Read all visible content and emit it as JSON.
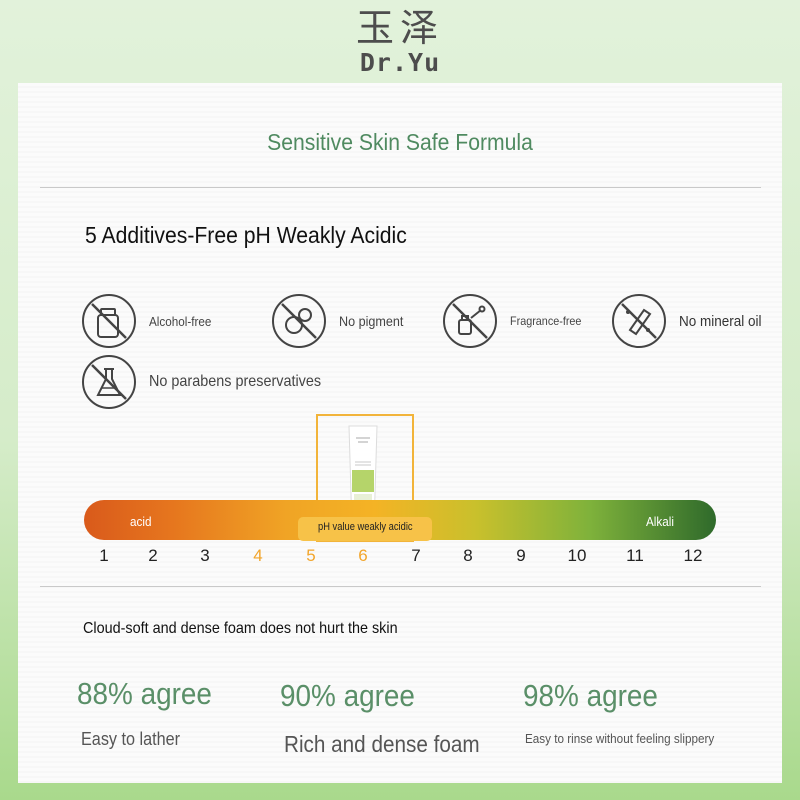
{
  "brand": {
    "chinese": "玉泽",
    "english": "Dr.Yu"
  },
  "section_title": "Sensitive Skin Safe Formula",
  "subheading": "5 Additives-Free pH Weakly Acidic",
  "features": [
    {
      "label": "Alcohol-free",
      "icon": "no-alcohol-icon"
    },
    {
      "label": "No pigment",
      "icon": "no-pigment-icon"
    },
    {
      "label": "Fragrance-free",
      "icon": "no-fragrance-icon"
    },
    {
      "label": "No mineral oil",
      "icon": "no-mineral-oil-icon"
    },
    {
      "label": "No parabens preservatives",
      "icon": "no-parabens-icon"
    }
  ],
  "ph_scale": {
    "acid_label": "acid",
    "alkali_label": "Alkali",
    "indicator_label": "pH value weakly acidic",
    "ticks": [
      "1",
      "2",
      "3",
      "4",
      "5",
      "6",
      "7",
      "8",
      "9",
      "10",
      "11",
      "12"
    ],
    "highlighted": [
      "4",
      "5",
      "6"
    ],
    "colors": {
      "acid": "#d95a1b",
      "mid": "#f4b325",
      "alkali": "#2f6a2b",
      "highlight": "#f2a52b"
    }
  },
  "foam": {
    "heading": "Cloud-soft and dense foam does not hurt the skin",
    "stats": [
      {
        "value": "88% agree",
        "label": "Easy to lather"
      },
      {
        "value": "90% agree",
        "label": "Rich and dense foam"
      },
      {
        "value": "98% agree",
        "label": "Easy to rinse without feeling slippery"
      }
    ]
  },
  "colors": {
    "accent_green": "#5a8f68",
    "title_green": "#4f8a60",
    "orange": "#f2b43a"
  }
}
